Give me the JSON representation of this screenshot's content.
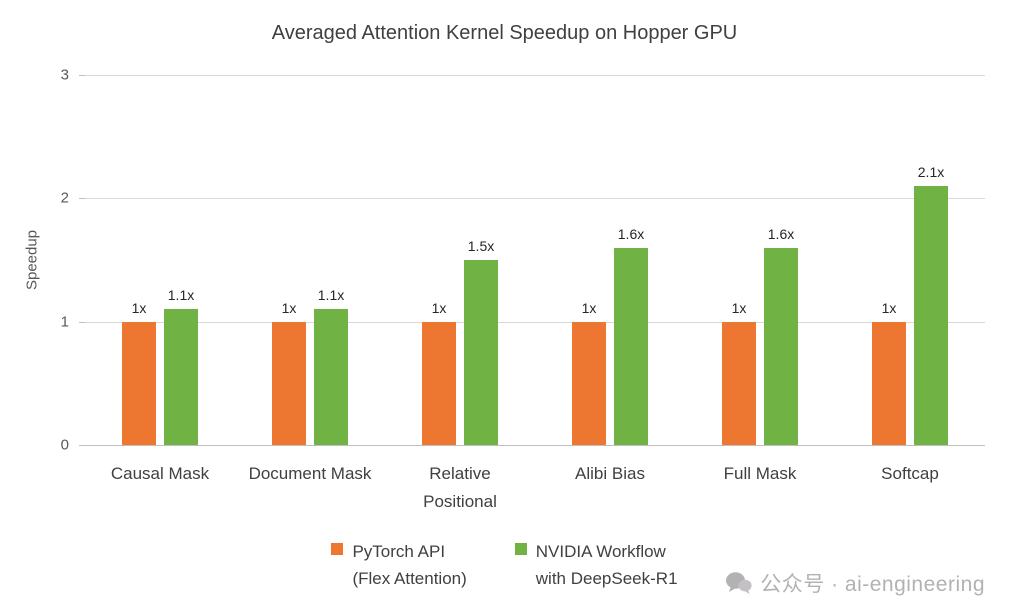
{
  "chart_data": {
    "type": "bar",
    "title": "Averaged Attention Kernel Speedup on Hopper GPU",
    "categories": [
      "Causal Mask",
      "Document Mask",
      "Relative\nPositional",
      "Alibi Bias",
      "Full Mask",
      "Softcap"
    ],
    "series": [
      {
        "name": "PyTorch API\n(Flex  Attention)",
        "color": "#ED7631",
        "values": [
          1,
          1,
          1,
          1,
          1,
          1
        ],
        "labels": [
          "1x",
          "1x",
          "1x",
          "1x",
          "1x",
          "1x"
        ]
      },
      {
        "name": "NVIDIA Workflow\nwith DeepSeek-R1",
        "color": "#70B244",
        "values": [
          1.1,
          1.1,
          1.5,
          1.6,
          1.6,
          2.1
        ],
        "labels": [
          "1.1x",
          "1.1x",
          "1.5x",
          "1.6x",
          "1.6x",
          "2.1x"
        ]
      }
    ],
    "xlabel": "",
    "ylabel": "Speedup",
    "ylim": [
      0,
      3
    ],
    "yticks": [
      0,
      1,
      2,
      3
    ],
    "grid": true,
    "grid_color": "#D9D9D9",
    "legend_position": "bottom"
  },
  "watermark": {
    "text": "公众号 · ai-engineering"
  }
}
